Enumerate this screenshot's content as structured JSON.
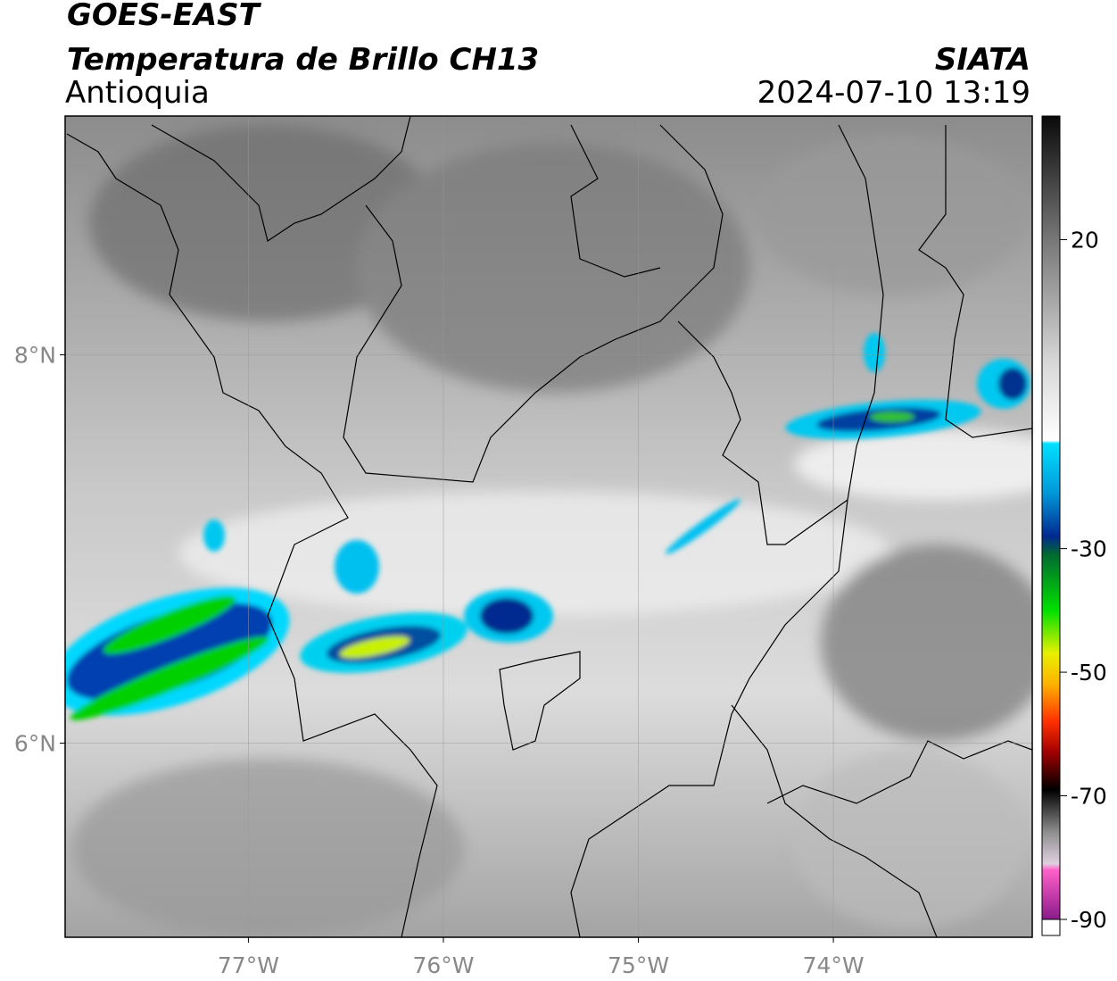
{
  "header": {
    "title": "GOES-EAST",
    "subtitle": "Temperatura de Brillo CH13",
    "region": "Antioquia",
    "source": "SIATA",
    "timestamp": "2024-07-10 13:19"
  },
  "map": {
    "lon_range": [
      -77.94,
      -72.98
    ],
    "lat_range": [
      5.0,
      9.23
    ],
    "lat_ticks": [
      {
        "value": 8,
        "label": "8°N"
      },
      {
        "value": 6,
        "label": "6°N"
      }
    ],
    "lon_ticks": [
      {
        "value": -77,
        "label": "77°W"
      },
      {
        "value": -76,
        "label": "76°W"
      },
      {
        "value": -75,
        "label": "75°W"
      },
      {
        "value": -74,
        "label": "74°W"
      }
    ]
  },
  "colorbar": {
    "range": [
      -90,
      40
    ],
    "ticks": [
      20,
      -30,
      -50,
      -70,
      -90
    ],
    "colormap": [
      {
        "value": 40,
        "color": "#0a0a0a"
      },
      {
        "value": 20,
        "color": "#777777"
      },
      {
        "value": 0,
        "color": "#d8d8d8"
      },
      {
        "value": -12.5,
        "color": "#ffffff"
      },
      {
        "value": -13,
        "color": "#00e0ff"
      },
      {
        "value": -21,
        "color": "#0098d8"
      },
      {
        "value": -28,
        "color": "#002a90"
      },
      {
        "value": -31,
        "color": "#006a30"
      },
      {
        "value": -40,
        "color": "#00e000"
      },
      {
        "value": -47,
        "color": "#e8f000"
      },
      {
        "value": -52,
        "color": "#ffb000"
      },
      {
        "value": -58,
        "color": "#ff3000"
      },
      {
        "value": -63,
        "color": "#a00000"
      },
      {
        "value": -69,
        "color": "#000000"
      },
      {
        "value": -76,
        "color": "#909090"
      },
      {
        "value": -81,
        "color": "#e0d0e0"
      },
      {
        "value": -82,
        "color": "#ff60c8"
      },
      {
        "value": -90,
        "color": "#8a1a8a"
      }
    ]
  }
}
